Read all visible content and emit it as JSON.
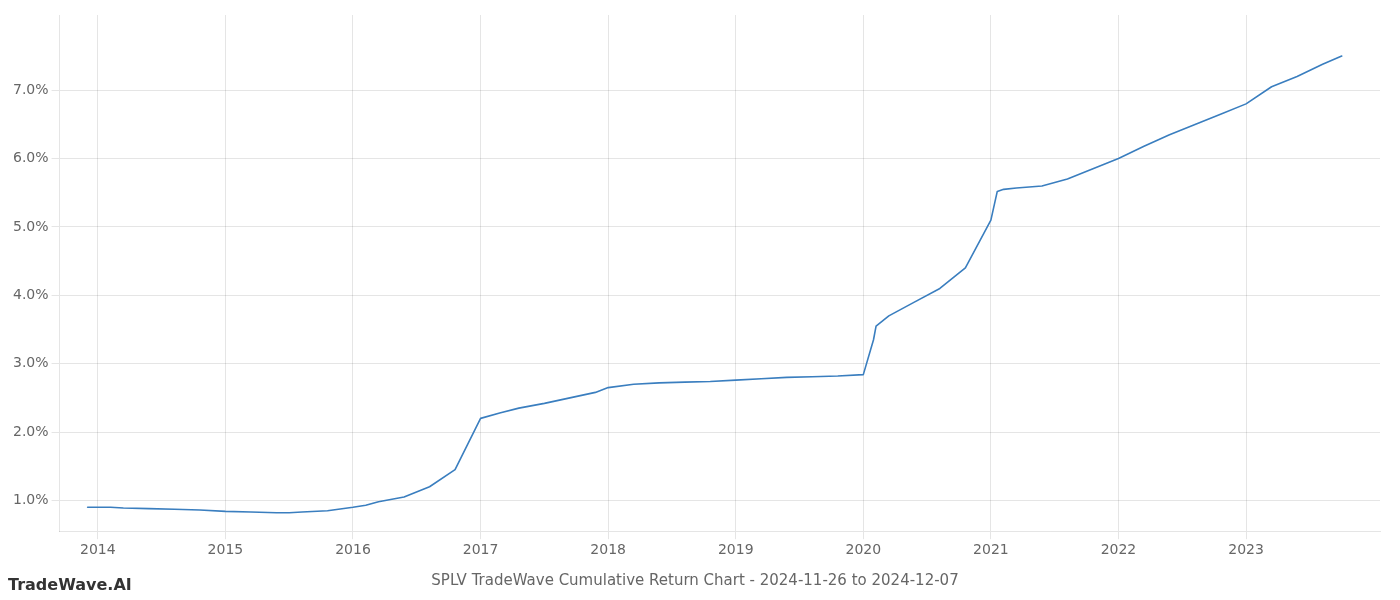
{
  "chart_data": {
    "type": "line",
    "title": "SPLV TradeWave Cumulative Return Chart - 2024-11-26 to 2024-12-07",
    "annotations": [
      "TradeWave.AI"
    ],
    "x": [
      2013.92,
      2014.0,
      2014.1,
      2014.2,
      2014.4,
      2014.6,
      2014.8,
      2015.0,
      2015.2,
      2015.4,
      2015.5,
      2015.6,
      2015.8,
      2016.0,
      2016.1,
      2016.2,
      2016.4,
      2016.6,
      2016.8,
      2017.0,
      2017.15,
      2017.3,
      2017.5,
      2017.7,
      2017.9,
      2018.0,
      2018.2,
      2018.4,
      2018.6,
      2018.8,
      2019.0,
      2019.2,
      2019.4,
      2019.6,
      2019.8,
      2020.0,
      2020.08,
      2020.1,
      2020.2,
      2020.4,
      2020.6,
      2020.8,
      2021.0,
      2021.05,
      2021.1,
      2021.2,
      2021.4,
      2021.6,
      2021.8,
      2022.0,
      2022.2,
      2022.4,
      2022.6,
      2022.8,
      2023.0,
      2023.2,
      2023.4,
      2023.6,
      2023.75
    ],
    "values": [
      0.9,
      0.9,
      0.9,
      0.89,
      0.88,
      0.87,
      0.86,
      0.84,
      0.83,
      0.82,
      0.82,
      0.83,
      0.85,
      0.9,
      0.93,
      0.98,
      1.05,
      1.2,
      1.45,
      2.2,
      2.28,
      2.35,
      2.42,
      2.5,
      2.58,
      2.65,
      2.7,
      2.72,
      2.73,
      2.74,
      2.76,
      2.78,
      2.8,
      2.81,
      2.82,
      2.84,
      3.35,
      3.55,
      3.7,
      3.9,
      4.1,
      4.4,
      5.1,
      5.52,
      5.55,
      5.57,
      5.6,
      5.7,
      5.85,
      6.0,
      6.18,
      6.35,
      6.5,
      6.65,
      6.8,
      7.05,
      7.2,
      7.38,
      7.5
    ],
    "color": "#3a7ebf",
    "xlim": [
      2013.7,
      2024.05
    ],
    "ylim": [
      0.55,
      8.1
    ],
    "xticks": [
      2014,
      2015,
      2016,
      2017,
      2018,
      2019,
      2020,
      2021,
      2022,
      2023
    ],
    "yticks": [
      {
        "value": 1.0,
        "label": "1.0%"
      },
      {
        "value": 2.0,
        "label": "2.0%"
      },
      {
        "value": 3.0,
        "label": "3.0%"
      },
      {
        "value": 4.0,
        "label": "4.0%"
      },
      {
        "value": 5.0,
        "label": "5.0%"
      },
      {
        "value": 6.0,
        "label": "6.0%"
      },
      {
        "value": 7.0,
        "label": "7.0%"
      }
    ],
    "grid": true
  }
}
